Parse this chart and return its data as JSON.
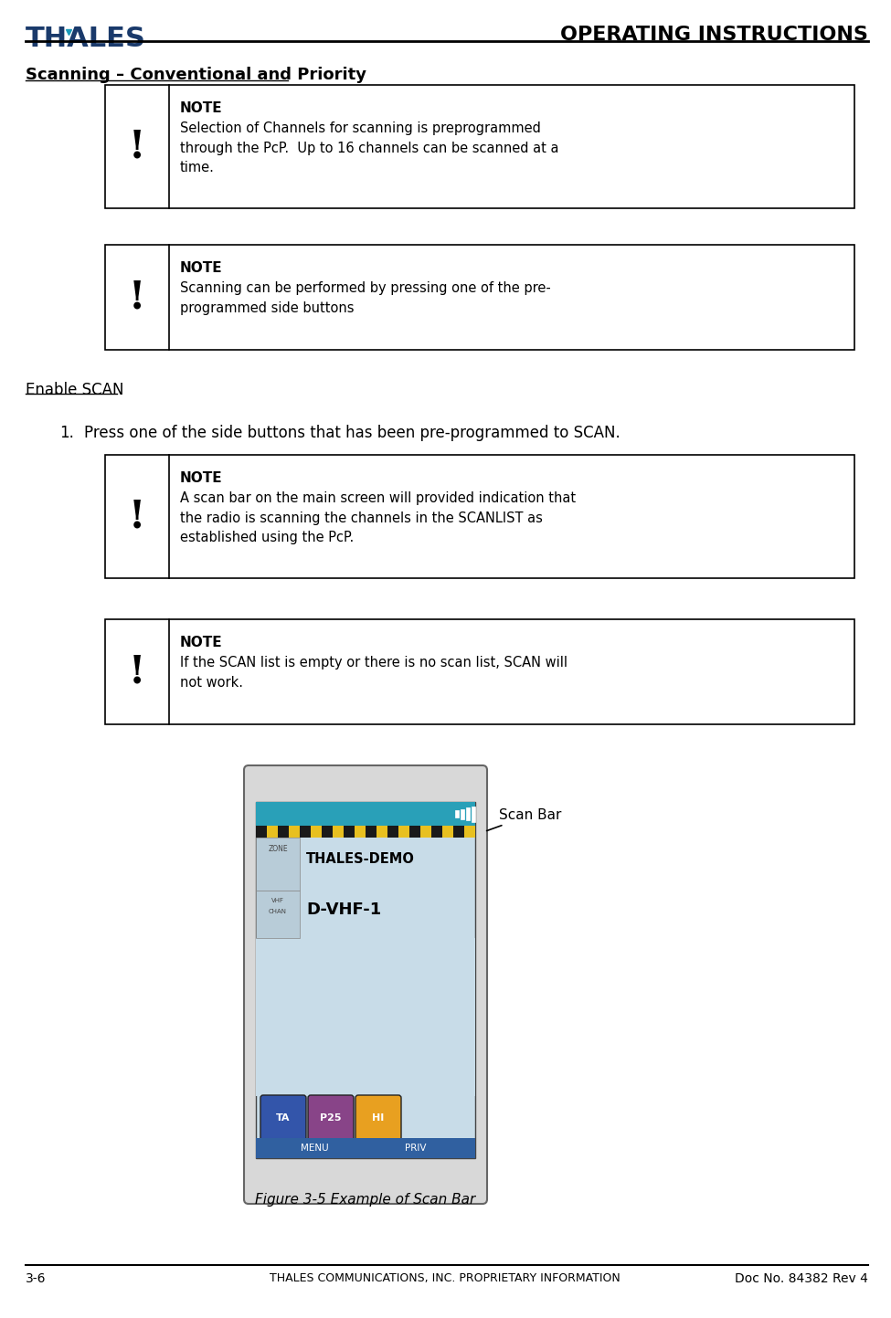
{
  "page_width": 9.75,
  "page_height": 14.43,
  "dpi": 100,
  "bg_color": "#ffffff",
  "header_title": "OPERATING INSTRUCTIONS",
  "thales_color_main": "#1a3a6b",
  "thales_color_accent": "#1a9bbb",
  "section_title": "Scanning – Conventional and Priority",
  "note_boxes": [
    {
      "note_label": "NOTE",
      "bang": "!",
      "body": "Selection of Channels for scanning is preprogrammed\nthrough the PcP.  Up to 16 channels can be scanned at a\ntime."
    },
    {
      "note_label": "NOTE",
      "bang": "!",
      "body": "Scanning can be performed by pressing one of the pre-\nprogrammed side buttons"
    }
  ],
  "enable_scan_title": "Enable SCAN",
  "step1_text": "Press one of the side buttons that has been pre-programmed to SCAN.",
  "note_boxes2": [
    {
      "note_label": "NOTE",
      "bang": "!",
      "body": "A scan bar on the main screen will provided indication that\nthe radio is scanning the channels in the SCANLIST as\nestablished using the PcP."
    },
    {
      "note_label": "NOTE",
      "bang": "!",
      "body": "If the SCAN list is empty or there is no scan list, SCAN will\nnot work."
    }
  ],
  "figure_caption": "Figure 3-5 Example of Scan Bar",
  "scan_bar_label": "Scan Bar",
  "footer_left": "3-6",
  "footer_center": "THALES COMMUNICATIONS, INC. PROPRIETARY INFORMATION",
  "footer_right": "Doc No. 84382 Rev 4",
  "phone_screen_bg": "#c8dce8",
  "phone_topbar_color": "#29a0b8",
  "phone_scanbar_yellow": "#e8c020",
  "phone_scanbar_black": "#1a1a1a",
  "phone_menu_bar_color": "#3060a0",
  "phone_btn_ta_color": "#3355aa",
  "phone_btn_p25_color": "#884488",
  "phone_btn_hi_color": "#e8a020",
  "phone_zone_bg": "#b8ccd8",
  "phone_body_color": "#d8d8d8"
}
